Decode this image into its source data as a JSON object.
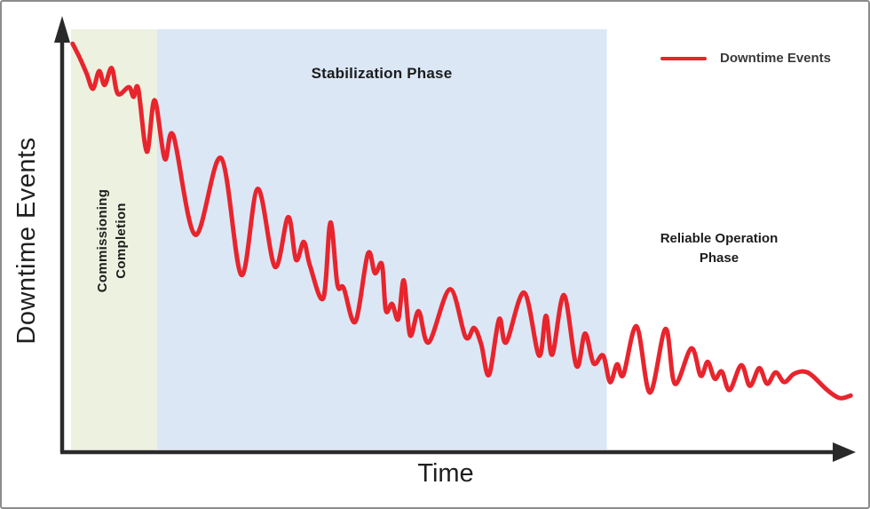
{
  "figure": {
    "background": "#ffffff",
    "border_color": "#8c8c8c"
  },
  "axes": {
    "x_label": "Time",
    "y_label": "Downtime Events",
    "axis_color": "#2a2a2a",
    "ticks": "none"
  },
  "legend": {
    "label": "Downtime Events",
    "line_color": "#e8242d"
  },
  "phases": [
    {
      "name": "commissioning-completion",
      "label": "Commissioning\nCompletion",
      "band_color": "#edf1df",
      "x_span_pct": [
        0,
        11
      ]
    },
    {
      "name": "stabilization",
      "label": "Stabilization Phase",
      "band_color": "#dbe7f5",
      "x_span_pct": [
        11,
        68.6
      ]
    },
    {
      "name": "reliable-operation",
      "label": "Reliable Operation\nPhase",
      "band_color": "#ffffff",
      "x_span_pct": [
        68.6,
        100
      ]
    }
  ],
  "chart_data": {
    "type": "line",
    "title": "",
    "xlabel": "Time",
    "ylabel": "Downtime Events",
    "x_range": [
      0,
      100
    ],
    "y_range": [
      0,
      100
    ],
    "grid": false,
    "legend_position": "top-right",
    "description": "Unitless conceptual curve: downtime events start high, decline with oscillations through Commissioning Completion and Stabilization Phase, then level off at a low value in the Reliable Operation Phase.",
    "annotations": [
      {
        "text": "Commissioning Completion",
        "x_span": [
          0,
          11
        ],
        "band_color": "#edf1df"
      },
      {
        "text": "Stabilization Phase",
        "x_span": [
          11,
          68.6
        ],
        "band_color": "#dbe7f5"
      },
      {
        "text": "Reliable Operation Phase",
        "x_span": [
          68.6,
          100
        ],
        "band_color": "#ffffff"
      }
    ],
    "series": [
      {
        "name": "Downtime Events",
        "color": "#e8242d",
        "stroke_width": 5,
        "data": [
          [
            0.2,
            96.6
          ],
          [
            1.1,
            93.3
          ],
          [
            2.0,
            89.5
          ],
          [
            2.8,
            85.9
          ],
          [
            3.6,
            90.1
          ],
          [
            4.3,
            86.8
          ],
          [
            5.2,
            90.8
          ],
          [
            6.0,
            84.7
          ],
          [
            7.4,
            86.3
          ],
          [
            8.0,
            84.0
          ],
          [
            8.6,
            85.9
          ],
          [
            9.7,
            71.0
          ],
          [
            10.7,
            83.2
          ],
          [
            12.0,
            69.3
          ],
          [
            13.1,
            74.8
          ],
          [
            15.9,
            51.3
          ],
          [
            19.2,
            69.5
          ],
          [
            21.8,
            41.8
          ],
          [
            23.9,
            62.2
          ],
          [
            26.1,
            43.7
          ],
          [
            27.8,
            55.5
          ],
          [
            28.8,
            45.4
          ],
          [
            29.8,
            49.6
          ],
          [
            30.6,
            43.9
          ],
          [
            32.3,
            36.3
          ],
          [
            33.2,
            54.2
          ],
          [
            34.1,
            39.5
          ],
          [
            34.9,
            38.7
          ],
          [
            36.4,
            30.7
          ],
          [
            38.0,
            46.8
          ],
          [
            38.9,
            42.2
          ],
          [
            39.8,
            44.3
          ],
          [
            40.3,
            33.4
          ],
          [
            41.1,
            34.9
          ],
          [
            41.9,
            31.3
          ],
          [
            42.6,
            40.5
          ],
          [
            43.4,
            27.5
          ],
          [
            44.5,
            33.2
          ],
          [
            45.8,
            25.8
          ],
          [
            48.5,
            38.4
          ],
          [
            50.5,
            27.1
          ],
          [
            51.6,
            29.2
          ],
          [
            52.5,
            25.4
          ],
          [
            53.5,
            18.1
          ],
          [
            54.8,
            31.3
          ],
          [
            55.7,
            25.8
          ],
          [
            58.0,
            37.6
          ],
          [
            59.9,
            22.7
          ],
          [
            60.8,
            32.1
          ],
          [
            61.6,
            22.9
          ],
          [
            63.1,
            37.0
          ],
          [
            64.7,
            20.2
          ],
          [
            65.8,
            27.9
          ],
          [
            66.9,
            20.8
          ],
          [
            68.1,
            22.7
          ],
          [
            69.0,
            16.4
          ],
          [
            69.9,
            20.6
          ],
          [
            70.7,
            18.1
          ],
          [
            72.4,
            29.6
          ],
          [
            74.1,
            13.9
          ],
          [
            76.1,
            29.0
          ],
          [
            77.3,
            16.0
          ],
          [
            79.4,
            24.4
          ],
          [
            80.6,
            17.9
          ],
          [
            81.5,
            21.2
          ],
          [
            82.4,
            17.2
          ],
          [
            83.3,
            18.9
          ],
          [
            84.3,
            14.5
          ],
          [
            85.8,
            20.4
          ],
          [
            86.9,
            15.5
          ],
          [
            88.1,
            19.7
          ],
          [
            89.1,
            16.0
          ],
          [
            90.2,
            18.7
          ],
          [
            91.3,
            16.4
          ],
          [
            92.5,
            18.3
          ],
          [
            93.8,
            18.9
          ],
          [
            94.9,
            17.9
          ],
          [
            96.8,
            14.5
          ],
          [
            98.4,
            12.6
          ],
          [
            99.8,
            13.2
          ]
        ]
      }
    ]
  }
}
